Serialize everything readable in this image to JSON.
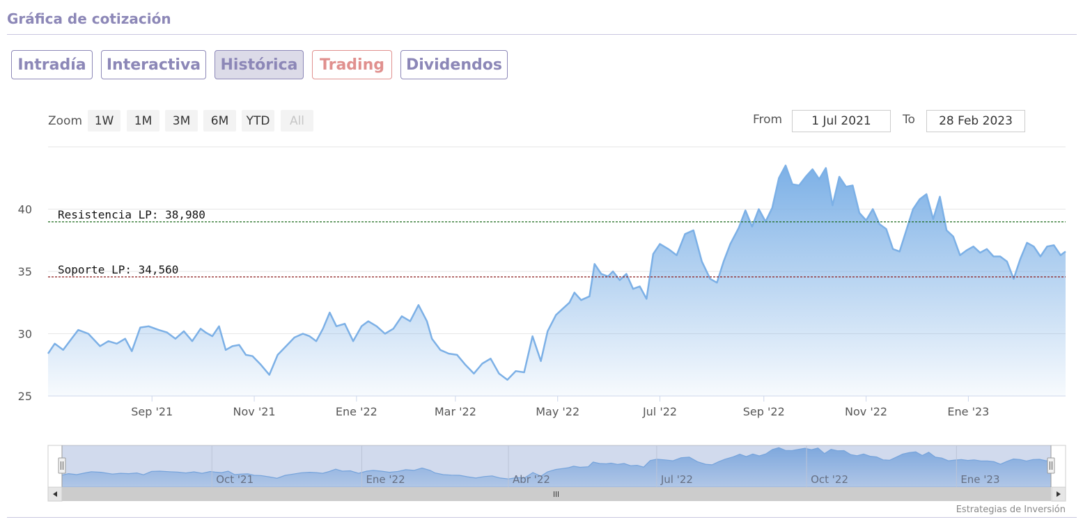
{
  "header": {
    "title": "Gráfica de cotización"
  },
  "tabs": [
    {
      "label": "Intradía",
      "active": false
    },
    {
      "label": "Interactiva",
      "active": false
    },
    {
      "label": "Histórica",
      "active": true
    },
    {
      "label": "Trading",
      "active": false
    },
    {
      "label": "Dividendos",
      "active": false
    }
  ],
  "range_selector": {
    "zoom_label": "Zoom",
    "buttons": [
      "1W",
      "1M",
      "3M",
      "6M",
      "YTD",
      "All"
    ],
    "disabled_button": "All",
    "from_label": "From",
    "from_value": "1 Jul 2021",
    "to_label": "To",
    "to_value": "28 Feb 2023"
  },
  "credits": "Estrategias de Inversión",
  "colors": {
    "line": "#7cb0e6",
    "area_top": "#7cb0e6",
    "resistance": "#1c6b1c",
    "support": "#8b1a1a",
    "accent": "#8c87b7",
    "trading": "#e0908e"
  },
  "chart_data": {
    "type": "area",
    "x_start": "2021-07-01",
    "x_end": "2023-02-28",
    "ylim": [
      25,
      45
    ],
    "yticks": [
      "25",
      "30",
      "35",
      "40"
    ],
    "xticks": [
      {
        "label": "Sep '21",
        "date": "2021-09-01"
      },
      {
        "label": "Nov '21",
        "date": "2021-11-01"
      },
      {
        "label": "Ene '22",
        "date": "2022-01-01"
      },
      {
        "label": "Mar '22",
        "date": "2022-03-01"
      },
      {
        "label": "May '22",
        "date": "2022-05-01"
      },
      {
        "label": "Jul '22",
        "date": "2022-07-01"
      },
      {
        "label": "Sep '22",
        "date": "2022-09-01"
      },
      {
        "label": "Nov '22",
        "date": "2022-11-01"
      },
      {
        "label": "Ene '23",
        "date": "2023-01-01"
      }
    ],
    "navigator_ticks": [
      {
        "label": "Oct '21",
        "date": "2021-10-01"
      },
      {
        "label": "Ene '22",
        "date": "2022-01-01"
      },
      {
        "label": "Abr '22",
        "date": "2022-04-01"
      },
      {
        "label": "Jul '22",
        "date": "2022-07-01"
      },
      {
        "label": "Oct '22",
        "date": "2022-10-01"
      },
      {
        "label": "Ene '23",
        "date": "2023-01-01"
      }
    ],
    "series": [
      {
        "points": [
          [
            "2021-07-01",
            28.4
          ],
          [
            "2021-07-05",
            29.2
          ],
          [
            "2021-07-10",
            28.7
          ],
          [
            "2021-07-15",
            29.6
          ],
          [
            "2021-07-19",
            30.3
          ],
          [
            "2021-07-25",
            30.0
          ],
          [
            "2021-08-01",
            29.0
          ],
          [
            "2021-08-06",
            29.4
          ],
          [
            "2021-08-11",
            29.2
          ],
          [
            "2021-08-16",
            29.6
          ],
          [
            "2021-08-20",
            28.6
          ],
          [
            "2021-08-25",
            30.5
          ],
          [
            "2021-08-30",
            30.6
          ],
          [
            "2021-09-05",
            30.3
          ],
          [
            "2021-09-10",
            30.1
          ],
          [
            "2021-09-15",
            29.6
          ],
          [
            "2021-09-20",
            30.2
          ],
          [
            "2021-09-25",
            29.4
          ],
          [
            "2021-09-30",
            30.4
          ],
          [
            "2021-10-03",
            30.1
          ],
          [
            "2021-10-07",
            29.8
          ],
          [
            "2021-10-11",
            30.6
          ],
          [
            "2021-10-15",
            28.7
          ],
          [
            "2021-10-19",
            29.0
          ],
          [
            "2021-10-23",
            29.1
          ],
          [
            "2021-10-27",
            28.3
          ],
          [
            "2021-10-31",
            28.2
          ],
          [
            "2021-11-05",
            27.5
          ],
          [
            "2021-11-10",
            26.7
          ],
          [
            "2021-11-15",
            28.3
          ],
          [
            "2021-11-20",
            29.0
          ],
          [
            "2021-11-25",
            29.7
          ],
          [
            "2021-11-30",
            30.0
          ],
          [
            "2021-12-04",
            29.8
          ],
          [
            "2021-12-08",
            29.4
          ],
          [
            "2021-12-12",
            30.4
          ],
          [
            "2021-12-16",
            31.7
          ],
          [
            "2021-12-20",
            30.6
          ],
          [
            "2021-12-25",
            30.8
          ],
          [
            "2021-12-30",
            29.4
          ],
          [
            "2022-01-04",
            30.6
          ],
          [
            "2022-01-08",
            31.0
          ],
          [
            "2022-01-13",
            30.6
          ],
          [
            "2022-01-18",
            30.0
          ],
          [
            "2022-01-23",
            30.4
          ],
          [
            "2022-01-28",
            31.4
          ],
          [
            "2022-02-02",
            31.0
          ],
          [
            "2022-02-07",
            32.3
          ],
          [
            "2022-02-12",
            31.0
          ],
          [
            "2022-02-15",
            29.6
          ],
          [
            "2022-02-20",
            28.7
          ],
          [
            "2022-02-25",
            28.4
          ],
          [
            "2022-03-02",
            28.3
          ],
          [
            "2022-03-07",
            27.5
          ],
          [
            "2022-03-12",
            26.8
          ],
          [
            "2022-03-17",
            27.6
          ],
          [
            "2022-03-22",
            28.0
          ],
          [
            "2022-03-27",
            26.8
          ],
          [
            "2022-04-01",
            26.3
          ],
          [
            "2022-04-06",
            27.0
          ],
          [
            "2022-04-11",
            26.9
          ],
          [
            "2022-04-16",
            29.8
          ],
          [
            "2022-04-21",
            27.8
          ],
          [
            "2022-04-25",
            30.2
          ],
          [
            "2022-04-30",
            31.5
          ],
          [
            "2022-05-04",
            32.0
          ],
          [
            "2022-05-08",
            32.5
          ],
          [
            "2022-05-11",
            33.3
          ],
          [
            "2022-05-15",
            32.7
          ],
          [
            "2022-05-20",
            33.0
          ],
          [
            "2022-05-23",
            35.6
          ],
          [
            "2022-05-27",
            34.8
          ],
          [
            "2022-05-31",
            34.6
          ],
          [
            "2022-06-03",
            35.0
          ],
          [
            "2022-06-07",
            34.3
          ],
          [
            "2022-06-11",
            34.8
          ],
          [
            "2022-06-15",
            33.6
          ],
          [
            "2022-06-19",
            33.8
          ],
          [
            "2022-06-23",
            32.8
          ],
          [
            "2022-06-27",
            36.4
          ],
          [
            "2022-07-01",
            37.2
          ],
          [
            "2022-07-06",
            36.8
          ],
          [
            "2022-07-11",
            36.3
          ],
          [
            "2022-07-16",
            38.0
          ],
          [
            "2022-07-21",
            38.3
          ],
          [
            "2022-07-26",
            35.8
          ],
          [
            "2022-07-31",
            34.4
          ],
          [
            "2022-08-04",
            34.1
          ],
          [
            "2022-08-08",
            35.8
          ],
          [
            "2022-08-12",
            37.2
          ],
          [
            "2022-08-17",
            38.5
          ],
          [
            "2022-08-21",
            39.9
          ],
          [
            "2022-08-25",
            38.6
          ],
          [
            "2022-08-29",
            40.0
          ],
          [
            "2022-09-02",
            39.0
          ],
          [
            "2022-09-06",
            40.1
          ],
          [
            "2022-09-10",
            42.5
          ],
          [
            "2022-09-14",
            43.5
          ],
          [
            "2022-09-18",
            42.0
          ],
          [
            "2022-09-22",
            41.9
          ],
          [
            "2022-09-26",
            42.6
          ],
          [
            "2022-09-30",
            43.2
          ],
          [
            "2022-10-04",
            42.4
          ],
          [
            "2022-10-08",
            43.3
          ],
          [
            "2022-10-12",
            40.3
          ],
          [
            "2022-10-16",
            42.6
          ],
          [
            "2022-10-20",
            41.8
          ],
          [
            "2022-10-24",
            41.9
          ],
          [
            "2022-10-28",
            39.7
          ],
          [
            "2022-11-01",
            39.1
          ],
          [
            "2022-11-05",
            40.0
          ],
          [
            "2022-11-09",
            38.8
          ],
          [
            "2022-11-13",
            38.4
          ],
          [
            "2022-11-17",
            36.8
          ],
          [
            "2022-11-21",
            36.6
          ],
          [
            "2022-11-25",
            38.3
          ],
          [
            "2022-11-29",
            40.0
          ],
          [
            "2022-12-03",
            40.8
          ],
          [
            "2022-12-07",
            41.2
          ],
          [
            "2022-12-11",
            39.2
          ],
          [
            "2022-12-15",
            41.0
          ],
          [
            "2022-12-19",
            38.3
          ],
          [
            "2022-12-23",
            37.8
          ],
          [
            "2022-12-27",
            36.3
          ],
          [
            "2022-12-31",
            36.7
          ],
          [
            "2023-01-04",
            37.0
          ],
          [
            "2023-01-08",
            36.5
          ],
          [
            "2023-01-12",
            36.8
          ],
          [
            "2023-01-16",
            36.2
          ],
          [
            "2023-01-20",
            36.2
          ],
          [
            "2023-01-24",
            35.8
          ],
          [
            "2023-01-28",
            34.4
          ],
          [
            "2023-02-01",
            36.0
          ],
          [
            "2023-02-05",
            37.3
          ],
          [
            "2023-02-09",
            37.0
          ],
          [
            "2023-02-13",
            36.2
          ],
          [
            "2023-02-17",
            37.0
          ],
          [
            "2023-02-21",
            37.1
          ],
          [
            "2023-02-25",
            36.3
          ],
          [
            "2023-02-28",
            36.6
          ]
        ]
      }
    ],
    "reference_lines": [
      {
        "label": "Resistencia LP: 38,980",
        "value": 38.98,
        "kind": "resistance"
      },
      {
        "label": "Soporte LP: 34,560",
        "value": 34.56,
        "kind": "support"
      }
    ],
    "grid": true,
    "navigator": true
  }
}
